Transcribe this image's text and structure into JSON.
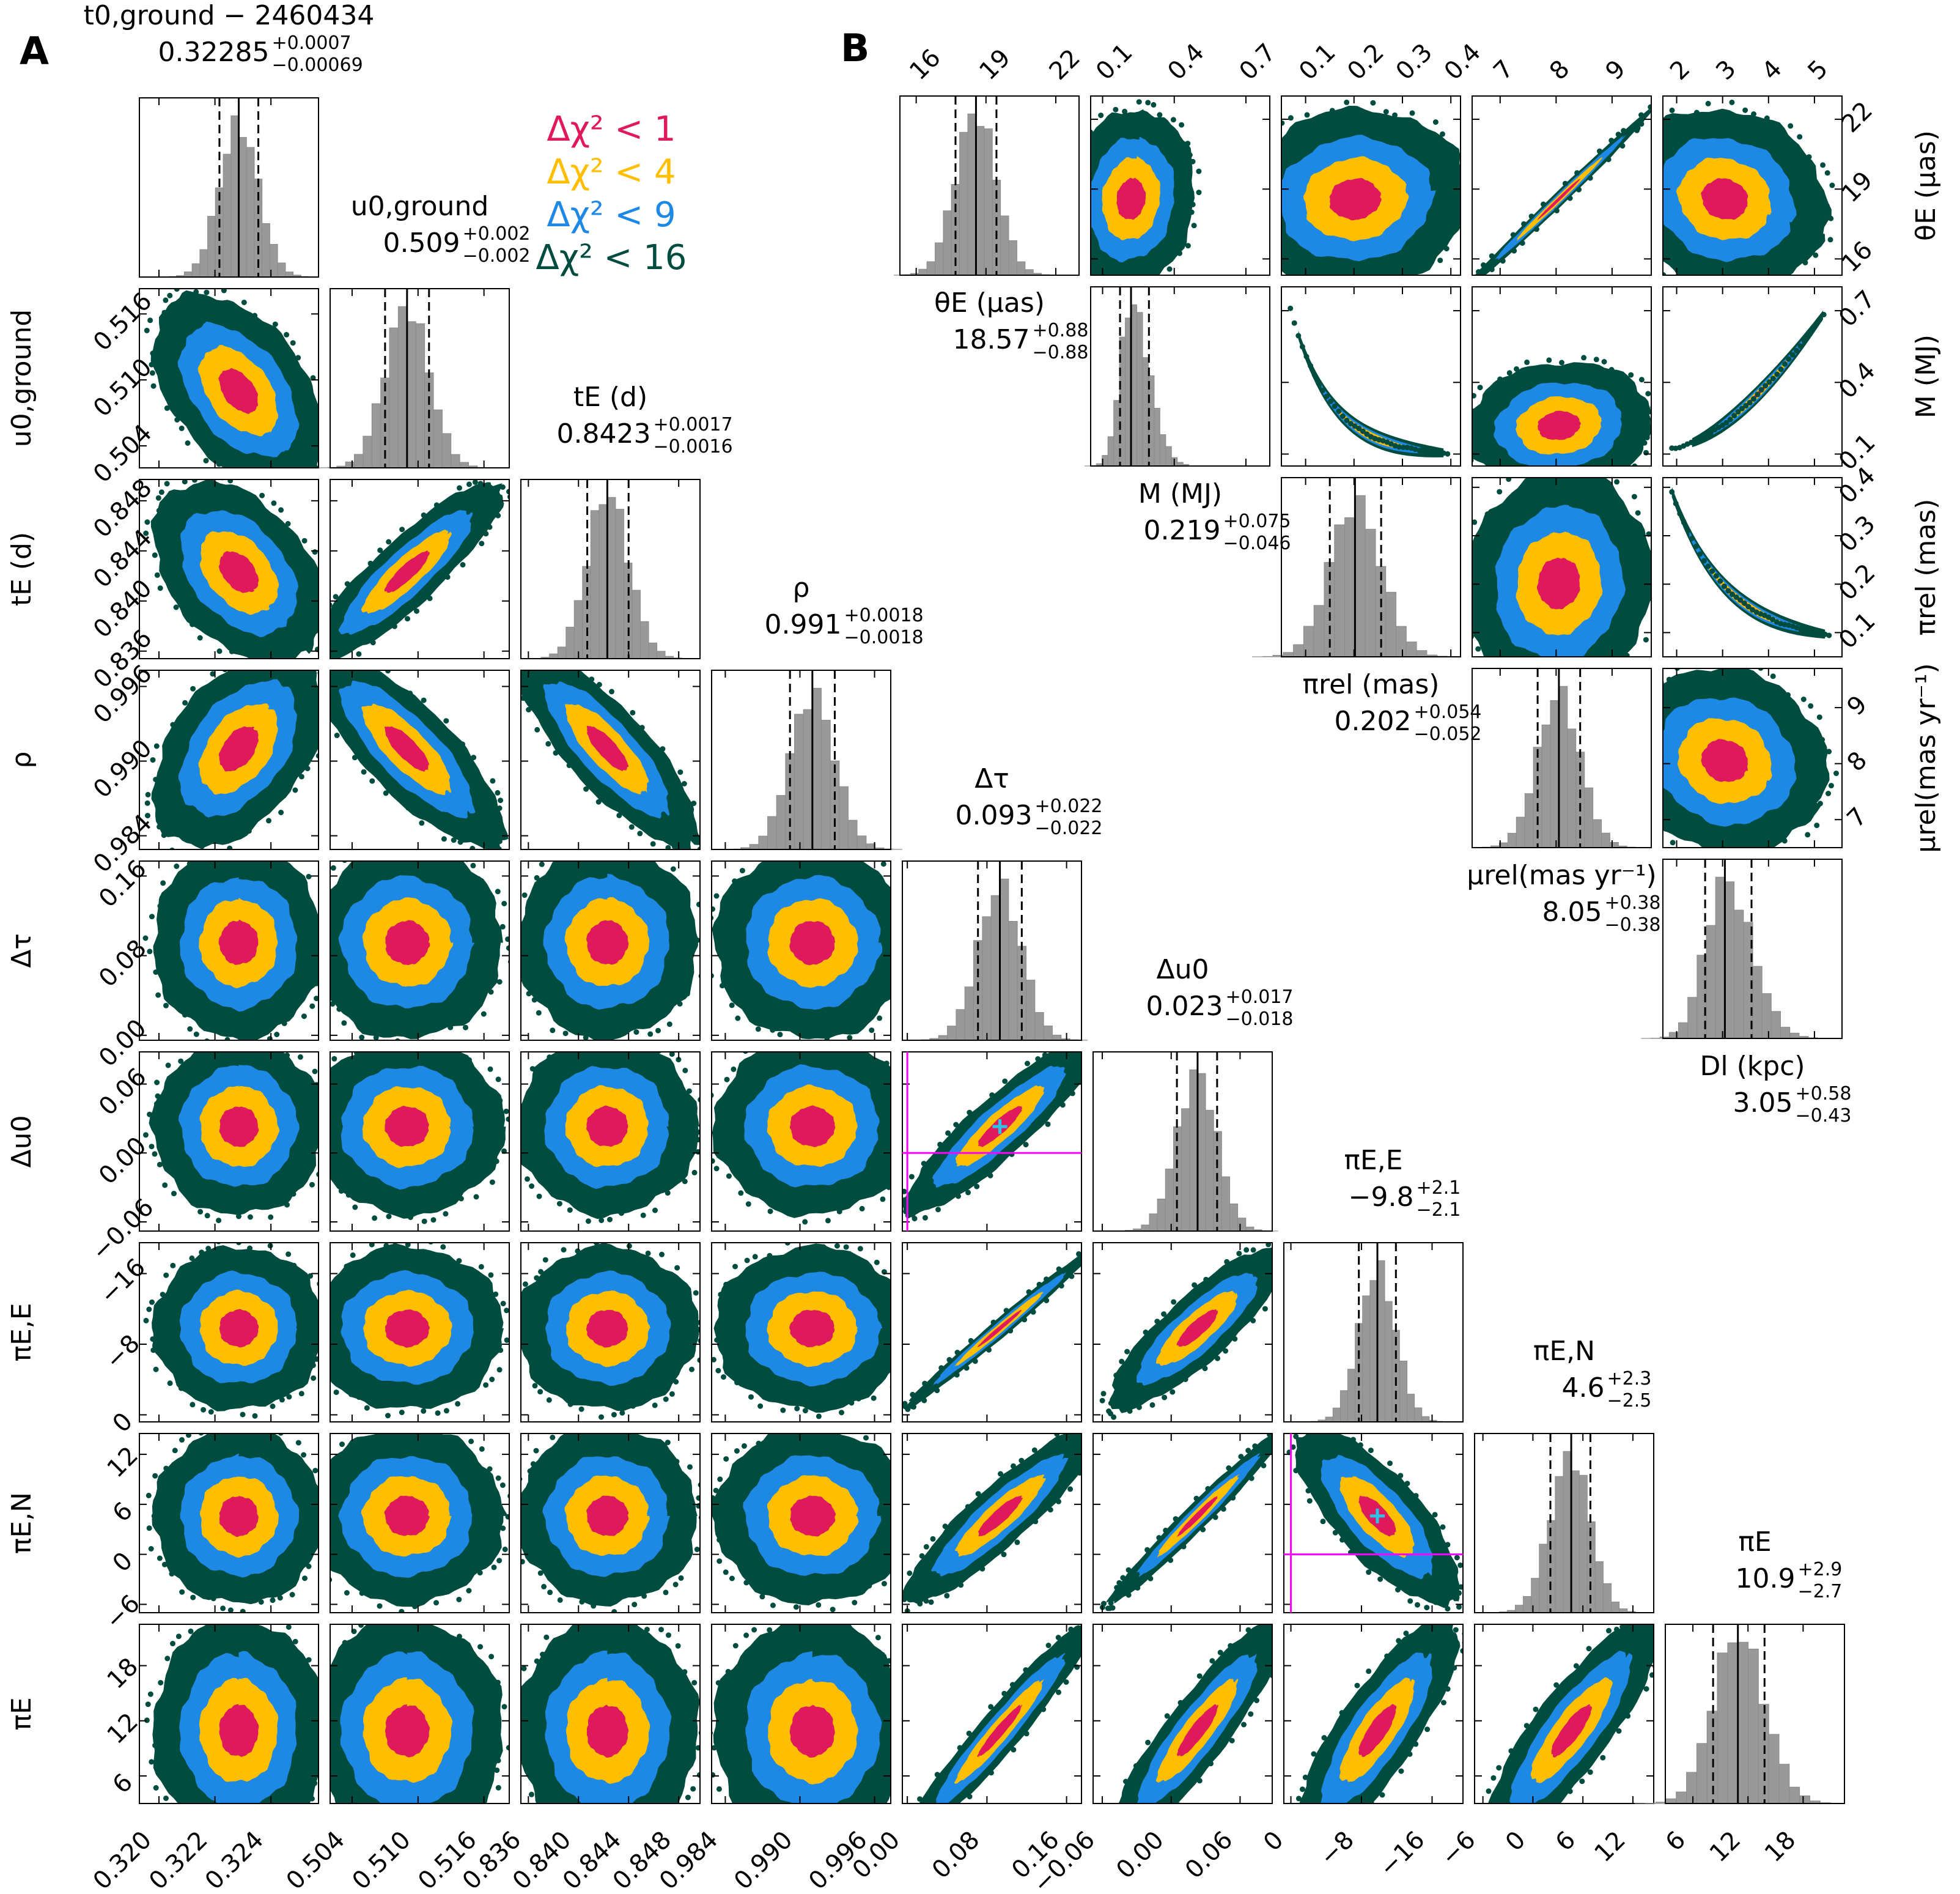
{
  "panel_labels": {
    "a": "A",
    "b": "B"
  },
  "colors": {
    "hist_fill": "#999999",
    "dchi1": "#e0195c",
    "dchi4": "#ffbf00",
    "dchi9": "#1e88e5",
    "dchi16": "#004d40",
    "crosshair": "#ff00ff",
    "marker": "#29c4e6"
  },
  "legend": [
    {
      "text": "Δχ² < 1",
      "color": "#e0195c"
    },
    {
      "text": "Δχ² < 4",
      "color": "#ffbf00"
    },
    {
      "text": "Δχ² < 9",
      "color": "#1e88e5"
    },
    {
      "text": "Δχ² < 16",
      "color": "#004d40"
    }
  ],
  "chart_data": [
    {
      "type": "scatter",
      "title": "A",
      "parameters": [
        {
          "label": "t0,ground − 2460434",
          "median": 0.32285,
          "plus": 0.0007,
          "minus": 0.00069,
          "lim": [
            0.3193,
            0.3257
          ],
          "ticks": [
            0.32,
            0.322,
            0.324
          ],
          "tick_labels": [
            "0.320",
            "0.322",
            "0.324"
          ]
        },
        {
          "label": "u0,ground",
          "median": 0.509,
          "plus": 0.002,
          "minus": 0.002,
          "lim": [
            0.502,
            0.5183
          ],
          "ticks": [
            0.504,
            0.51,
            0.516
          ],
          "tick_labels": [
            "0.504",
            "0.510",
            "0.516"
          ]
        },
        {
          "label": "tE (d)",
          "median": 0.8423,
          "plus": 0.0017,
          "minus": 0.0016,
          "lim": [
            0.8354,
            0.8497
          ],
          "ticks": [
            0.836,
            0.84,
            0.844,
            0.848
          ],
          "tick_labels": [
            "0.836",
            "0.840",
            "0.844",
            "0.848"
          ]
        },
        {
          "label": "ρ",
          "median": 0.991,
          "plus": 0.0018,
          "minus": 0.0018,
          "lim": [
            0.9829,
            0.9973
          ],
          "ticks": [
            0.984,
            0.99,
            0.996
          ],
          "tick_labels": [
            "0.984",
            "0.990",
            "0.996"
          ]
        },
        {
          "label": "Δτ",
          "median": 0.093,
          "plus": 0.022,
          "minus": 0.022,
          "lim": [
            -0.005,
            0.175
          ],
          "ticks": [
            0.0,
            0.08,
            0.16
          ],
          "tick_labels": [
            "0.00",
            "0.08",
            "0.16"
          ]
        },
        {
          "label": "Δu0",
          "median": 0.023,
          "plus": 0.017,
          "minus": 0.018,
          "lim": [
            -0.068,
            0.088
          ],
          "ticks": [
            -0.06,
            0.0,
            0.06
          ],
          "tick_labels": [
            "−0.06",
            "0.00",
            "0.06"
          ]
        },
        {
          "label": "πE,E",
          "median": -9.8,
          "plus": 2.1,
          "minus": 2.1,
          "lim": [
            0.8,
            -19.5
          ],
          "ticks": [
            0,
            -8,
            -16
          ],
          "tick_labels": [
            "0",
            "−8",
            "−16"
          ]
        },
        {
          "label": "πE,N",
          "median": 4.6,
          "plus": 2.3,
          "minus": 2.5,
          "lim": [
            -7,
            14.5
          ],
          "ticks": [
            -6,
            0,
            6,
            12
          ],
          "tick_labels": [
            "−6",
            "0",
            "6",
            "12"
          ]
        },
        {
          "label": "πE",
          "median": 10.9,
          "plus": 2.9,
          "minus": 2.7,
          "lim": [
            3,
            22.5
          ],
          "ticks": [
            6,
            12,
            18
          ],
          "tick_labels": [
            "6",
            "12",
            "18"
          ]
        }
      ],
      "correlations": [
        [
          1,
          0,
          0,
          0,
          0,
          0,
          0,
          0,
          0
        ],
        [
          -0.45,
          1,
          0,
          0,
          0,
          0,
          0,
          0,
          0
        ],
        [
          -0.4,
          0.88,
          1,
          0,
          0,
          0,
          0,
          0,
          0
        ],
        [
          0.45,
          -0.8,
          -0.82,
          1,
          0,
          0,
          0,
          0,
          0
        ],
        [
          0,
          0,
          0,
          0,
          1,
          0,
          0,
          0,
          0
        ],
        [
          0,
          0,
          0,
          0,
          0.9,
          1,
          0,
          0,
          0
        ],
        [
          0,
          0,
          0,
          0,
          -0.99,
          -0.85,
          1,
          0,
          0
        ],
        [
          0,
          0,
          0,
          0,
          0.9,
          0.98,
          0.75,
          1,
          0
        ],
        [
          0,
          0,
          0,
          0,
          0.96,
          0.9,
          -0.82,
          0.85,
          1
        ]
      ],
      "reference_lines": [
        {
          "panel": [
            5,
            4
          ],
          "x": 0.0,
          "y": 0.0,
          "marker_x": 0.093,
          "marker_y": 0.023
        },
        {
          "panel": [
            7,
            6
          ],
          "x": 0,
          "y": 0,
          "marker_x": -9.8,
          "marker_y": 4.6
        }
      ]
    },
    {
      "type": "scatter",
      "title": "B",
      "parameters": [
        {
          "label": "θE (μas)",
          "median": 18.57,
          "plus": 0.88,
          "minus": 0.88,
          "lim": [
            15.3,
            23.0
          ],
          "ticks": [
            16,
            19,
            22
          ],
          "tick_labels": [
            "16",
            "19",
            "22"
          ]
        },
        {
          "label": "M (MJ)",
          "median": 0.219,
          "plus": 0.075,
          "minus": 0.046,
          "lim": [
            0.05,
            0.8
          ],
          "ticks": [
            0.1,
            0.4,
            0.7
          ],
          "tick_labels": [
            "0.1",
            "0.4",
            "0.7"
          ]
        },
        {
          "label": "πrel (mas)",
          "median": 0.202,
          "plus": 0.054,
          "minus": 0.052,
          "lim": [
            0.05,
            0.42
          ],
          "ticks": [
            0.1,
            0.2,
            0.3,
            0.4
          ],
          "tick_labels": [
            "0.1",
            "0.2",
            "0.3",
            "0.4"
          ]
        },
        {
          "label": "μrel(mas yr⁻¹)",
          "median": 8.05,
          "plus": 0.38,
          "minus": 0.38,
          "lim": [
            6.5,
            9.7
          ],
          "ticks": [
            7,
            8,
            9
          ],
          "tick_labels": [
            "7",
            "8",
            "9"
          ]
        },
        {
          "label": "Dl (kpc)",
          "median": 3.05,
          "plus": 0.58,
          "minus": 0.43,
          "lim": [
            1.7,
            5.6
          ],
          "ticks": [
            2,
            3,
            4,
            5
          ],
          "tick_labels": [
            "2",
            "3",
            "4",
            "5"
          ]
        }
      ],
      "correlations": [
        [
          1,
          0.1,
          0.05,
          1.0,
          -0.1
        ],
        [
          0.1,
          1,
          -0.9,
          0.1,
          0.92
        ],
        [
          0.05,
          -0.9,
          1,
          0.05,
          -0.95
        ],
        [
          1.0,
          0.1,
          0.05,
          1,
          -0.1
        ],
        [
          -0.1,
          0.92,
          -0.95,
          -0.1,
          1
        ]
      ]
    }
  ]
}
